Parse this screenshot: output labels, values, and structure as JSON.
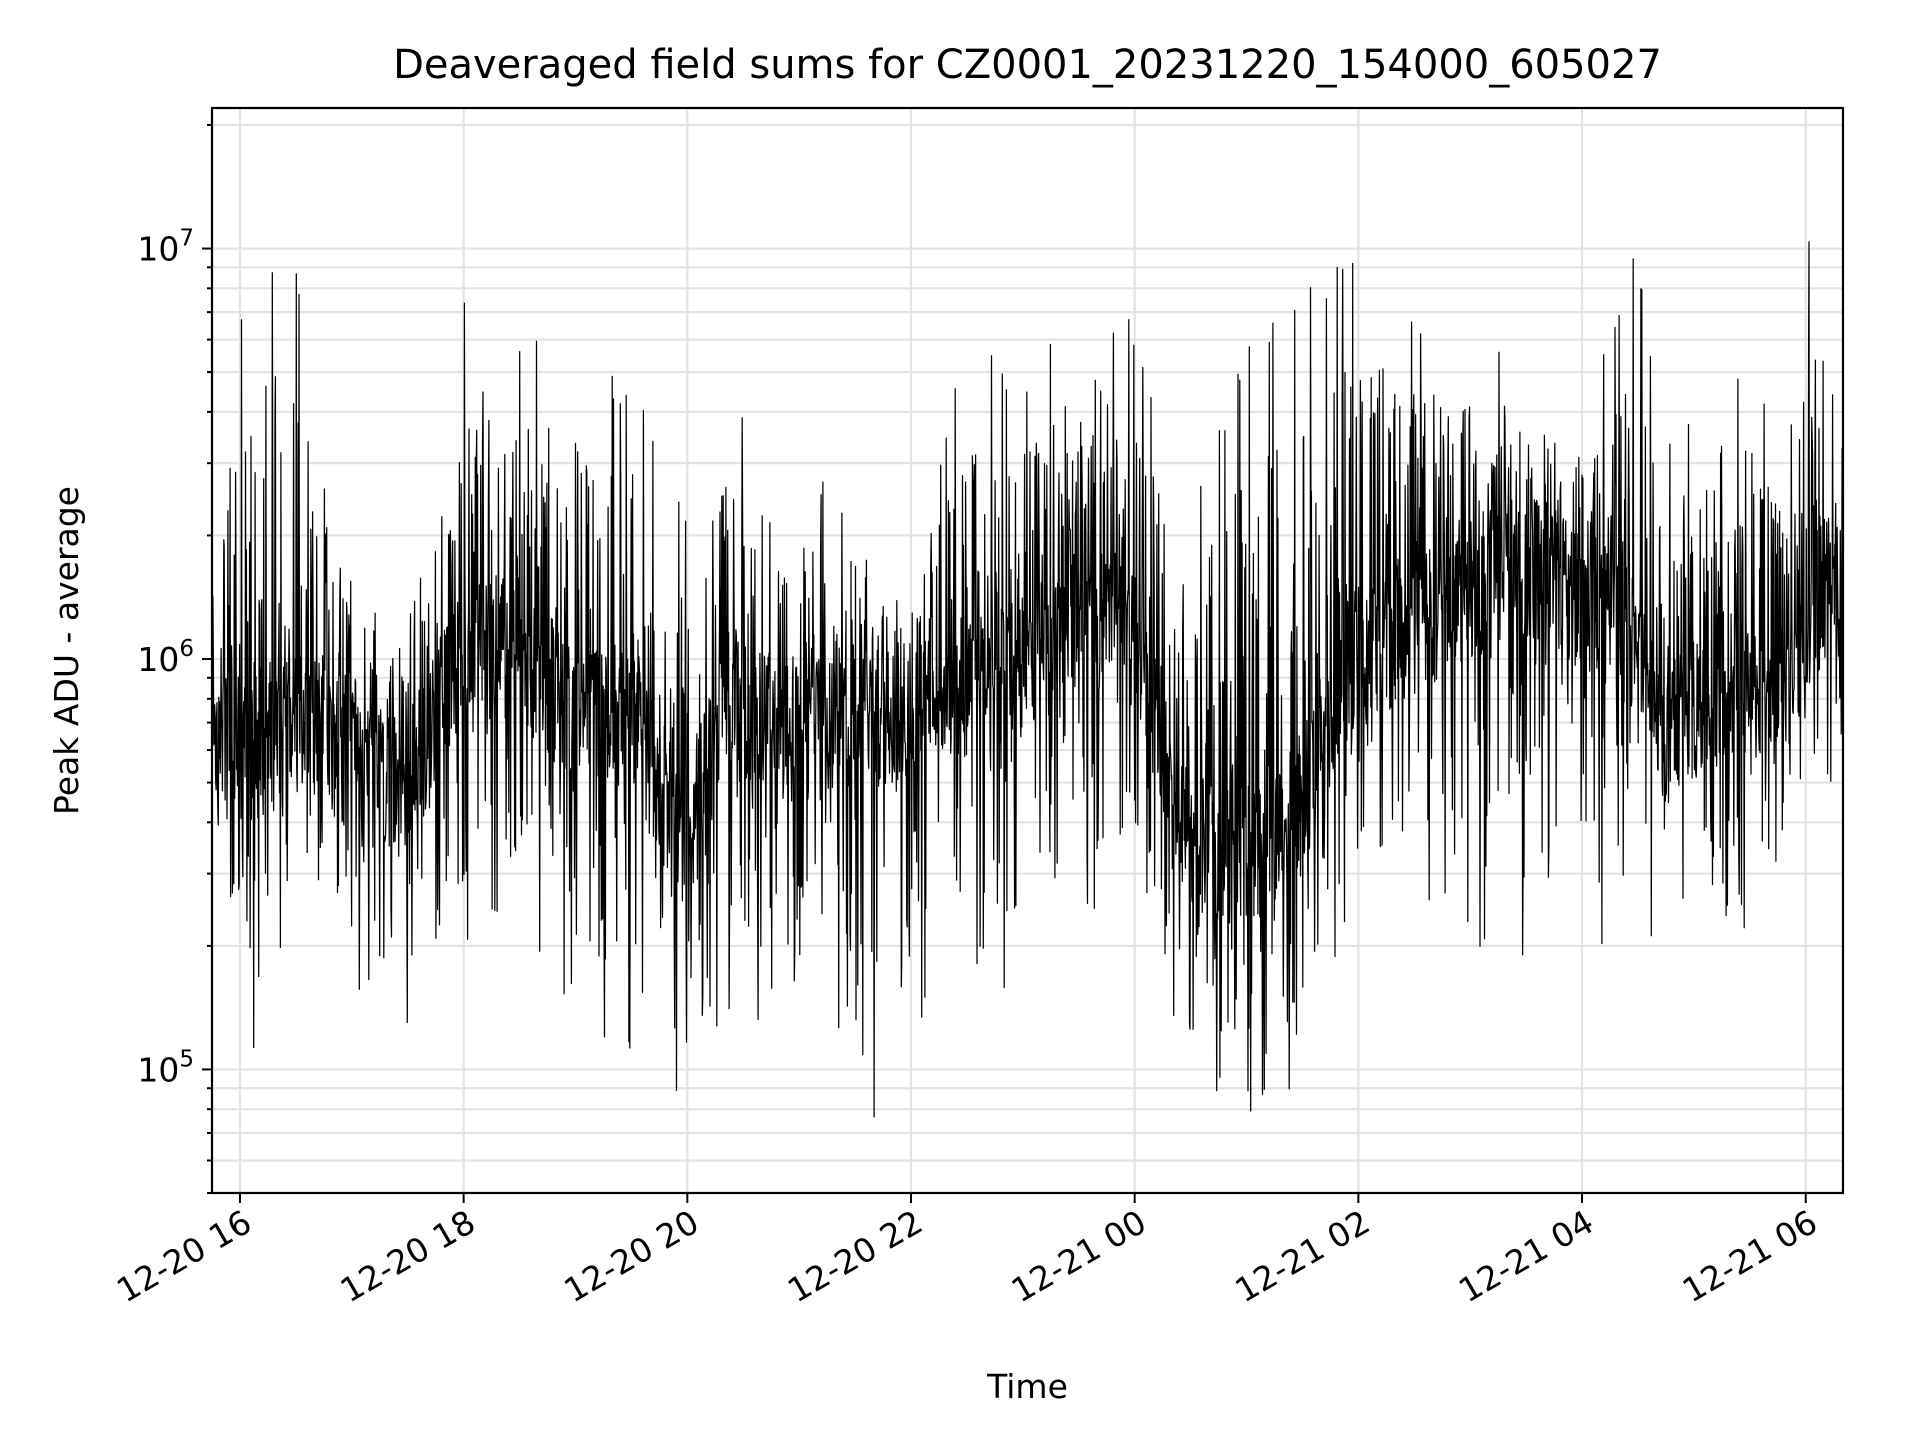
{
  "chart_data": {
    "type": "line",
    "title": "Deaveraged field sums for CZ0001_20231220_154000_605027",
    "xlabel": "Time",
    "ylabel": "Peak ADU - average",
    "y_scale": "log",
    "x_range": [
      "2023-12-20 15:45",
      "2023-12-21 06:20"
    ],
    "ylim": [
      50000,
      22000000
    ],
    "grid": true,
    "legend": "none",
    "line_color": "#000000",
    "x_ticks": [
      {
        "value": "2023-12-20 16:00",
        "label": "12-20 16"
      },
      {
        "value": "2023-12-20 18:00",
        "label": "12-20 18"
      },
      {
        "value": "2023-12-20 20:00",
        "label": "12-20 20"
      },
      {
        "value": "2023-12-20 22:00",
        "label": "12-20 22"
      },
      {
        "value": "2023-12-21 00:00",
        "label": "12-21 00"
      },
      {
        "value": "2023-12-21 02:00",
        "label": "12-21 02"
      },
      {
        "value": "2023-12-21 04:00",
        "label": "12-21 04"
      },
      {
        "value": "2023-12-21 06:00",
        "label": "12-21 06"
      }
    ],
    "y_ticks": [
      {
        "value": 100000,
        "base": "10",
        "exp": "5"
      },
      {
        "value": 1000000,
        "base": "10",
        "exp": "6"
      },
      {
        "value": 10000000,
        "base": "10",
        "exp": "7"
      }
    ],
    "series": [
      {
        "envelope": [
          {
            "x": "2023-12-20 15:45",
            "center": 650000,
            "min": 420000,
            "max": 3400000
          },
          {
            "x": "2023-12-20 16:10",
            "center": 600000,
            "min": 90000,
            "max": 10500000
          },
          {
            "x": "2023-12-20 16:40",
            "center": 750000,
            "min": 300000,
            "max": 8600000
          },
          {
            "x": "2023-12-20 17:00",
            "center": 520000,
            "min": 150000,
            "max": 1500000
          },
          {
            "x": "2023-12-20 17:30",
            "center": 480000,
            "min": 120000,
            "max": 1200000
          },
          {
            "x": "2023-12-20 18:00",
            "center": 1100000,
            "min": 190000,
            "max": 7800000
          },
          {
            "x": "2023-12-20 18:30",
            "center": 1000000,
            "min": 230000,
            "max": 6300000
          },
          {
            "x": "2023-12-20 19:00",
            "center": 750000,
            "min": 130000,
            "max": 5600000
          },
          {
            "x": "2023-12-20 19:30",
            "center": 700000,
            "min": 110000,
            "max": 4900000
          },
          {
            "x": "2023-12-20 20:00",
            "center": 350000,
            "min": 72000,
            "max": 2200000
          },
          {
            "x": "2023-12-20 20:20",
            "center": 800000,
            "min": 120000,
            "max": 4300000
          },
          {
            "x": "2023-12-20 21:00",
            "center": 650000,
            "min": 140000,
            "max": 2900000
          },
          {
            "x": "2023-12-20 21:30",
            "center": 700000,
            "min": 65000,
            "max": 2600000
          },
          {
            "x": "2023-12-20 22:00",
            "center": 750000,
            "min": 75000,
            "max": 1800000
          },
          {
            "x": "2023-12-20 22:30",
            "center": 850000,
            "min": 110000,
            "max": 6200000
          },
          {
            "x": "2023-12-20 23:00",
            "center": 950000,
            "min": 170000,
            "max": 4800000
          },
          {
            "x": "2023-12-20 23:30",
            "center": 1300000,
            "min": 220000,
            "max": 8000000
          },
          {
            "x": "2023-12-21 00:00",
            "center": 1100000,
            "min": 300000,
            "max": 6800000
          },
          {
            "x": "2023-12-21 00:30",
            "center": 350000,
            "min": 95000,
            "max": 2700000
          },
          {
            "x": "2023-12-21 01:00",
            "center": 330000,
            "min": 78000,
            "max": 5800000
          },
          {
            "x": "2023-12-21 01:30",
            "center": 450000,
            "min": 85000,
            "max": 8000000
          },
          {
            "x": "2023-12-21 02:00",
            "center": 1000000,
            "min": 250000,
            "max": 10700000
          },
          {
            "x": "2023-12-21 02:30",
            "center": 1200000,
            "min": 280000,
            "max": 6800000
          },
          {
            "x": "2023-12-21 03:00",
            "center": 1500000,
            "min": 200000,
            "max": 6900000
          },
          {
            "x": "2023-12-21 03:30",
            "center": 1700000,
            "min": 180000,
            "max": 5200000
          },
          {
            "x": "2023-12-21 04:00",
            "center": 1400000,
            "min": 190000,
            "max": 4300000
          },
          {
            "x": "2023-12-21 04:30",
            "center": 1100000,
            "min": 150000,
            "max": 10500000
          },
          {
            "x": "2023-12-21 04:45",
            "center": 650000,
            "min": 300000,
            "max": 3500000
          },
          {
            "x": "2023-12-21 05:15",
            "center": 900000,
            "min": 155000,
            "max": 5400000
          },
          {
            "x": "2023-12-21 05:45",
            "center": 800000,
            "min": 250000,
            "max": 4600000
          },
          {
            "x": "2023-12-21 06:10",
            "center": 1500000,
            "min": 450000,
            "max": 17000000
          },
          {
            "x": "2023-12-21 06:20",
            "center": 1400000,
            "min": 400000,
            "max": 3000000
          }
        ]
      }
    ]
  }
}
